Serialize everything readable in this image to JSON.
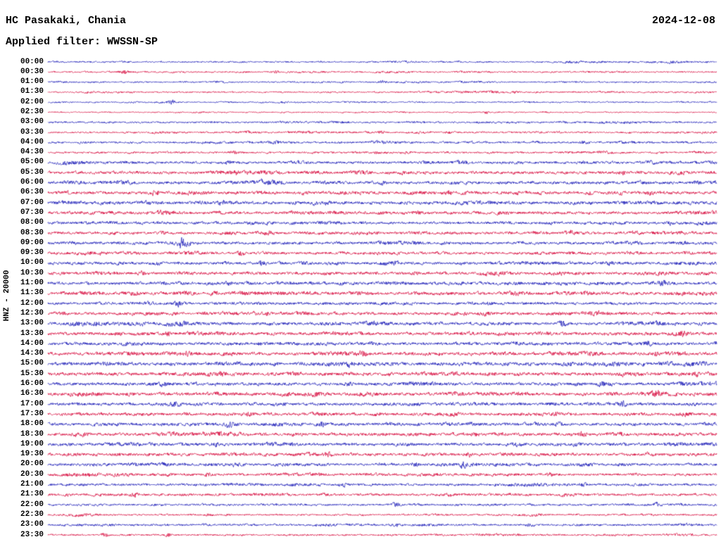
{
  "header": {
    "station_title": "HC Pasakaki, Chania",
    "date": "2024-12-08",
    "filter_label": "Applied filter: WWSSN-SP"
  },
  "side": {
    "channel_label": "HNZ - 20000"
  },
  "chart_data": {
    "type": "line",
    "subtype": "helicorder-seismogram",
    "title": "HC Pasakaki, Chania",
    "date": "2024-12-08",
    "filter": "WWSSN-SP",
    "channel": "HNZ",
    "scale": 20000,
    "row_duration_minutes": 30,
    "legend_position": "none",
    "grid": false,
    "colors": {
      "blue": "#1414b4",
      "red": "#d50038"
    },
    "noise_seed": 20241208,
    "rows": [
      {
        "time": "00:00",
        "color": "blue",
        "amp": 1.1,
        "events": []
      },
      {
        "time": "00:30",
        "color": "red",
        "amp": 1.1,
        "events": [
          {
            "x": 0.115,
            "a": 2.5
          },
          {
            "x": 0.34,
            "a": 2.0
          }
        ]
      },
      {
        "time": "01:00",
        "color": "blue",
        "amp": 1.1,
        "events": [
          {
            "x": 0.5,
            "a": 2.5
          }
        ]
      },
      {
        "time": "01:30",
        "color": "red",
        "amp": 1.1,
        "events": [
          {
            "x": 0.7,
            "a": 2.0
          }
        ]
      },
      {
        "time": "02:00",
        "color": "blue",
        "amp": 0.9,
        "events": [
          {
            "x": 0.185,
            "a": 4.5,
            "w": 0.003
          }
        ]
      },
      {
        "time": "02:30",
        "color": "red",
        "amp": 0.9,
        "events": [
          {
            "x": 0.655,
            "a": 2.5,
            "w": 0.003
          }
        ]
      },
      {
        "time": "03:00",
        "color": "blue",
        "amp": 1.3,
        "events": []
      },
      {
        "time": "03:30",
        "color": "red",
        "amp": 1.2,
        "events": [
          {
            "x": 0.5,
            "a": 2.0
          },
          {
            "x": 0.6,
            "a": 2.0
          }
        ]
      },
      {
        "time": "04:00",
        "color": "blue",
        "amp": 1.4,
        "events": [
          {
            "x": 0.34,
            "a": 2.0
          },
          {
            "x": 0.8,
            "a": 2.5
          }
        ]
      },
      {
        "time": "04:30",
        "color": "red",
        "amp": 1.3,
        "events": [
          {
            "x": 0.28,
            "a": 2.0
          },
          {
            "x": 0.49,
            "a": 2.0
          }
        ]
      },
      {
        "time": "05:00",
        "color": "blue",
        "amp": 1.8,
        "events": [
          {
            "x": 0.27,
            "a": 2.5
          },
          {
            "x": 0.8,
            "a": 2.5
          }
        ]
      },
      {
        "time": "05:30",
        "color": "red",
        "amp": 2.0,
        "events": [
          {
            "x": 0.28,
            "a": 3.0
          },
          {
            "x": 0.86,
            "a": 2.0
          }
        ]
      },
      {
        "time": "06:00",
        "color": "blue",
        "amp": 2.0,
        "events": [
          {
            "x": 0.5,
            "a": 2.5
          },
          {
            "x": 0.97,
            "a": 2.0
          }
        ]
      },
      {
        "time": "06:30",
        "color": "red",
        "amp": 2.2,
        "events": [
          {
            "x": 0.16,
            "a": 2.5
          },
          {
            "x": 0.6,
            "a": 2.5
          },
          {
            "x": 0.9,
            "a": 2.5
          }
        ]
      },
      {
        "time": "07:00",
        "color": "blue",
        "amp": 2.2,
        "events": [
          {
            "x": 0.26,
            "a": 3.0
          },
          {
            "x": 0.4,
            "a": 2.5
          }
        ]
      },
      {
        "time": "07:30",
        "color": "red",
        "amp": 2.1,
        "events": [
          {
            "x": 0.17,
            "a": 2.5
          },
          {
            "x": 0.55,
            "a": 2.0
          }
        ]
      },
      {
        "time": "08:00",
        "color": "blue",
        "amp": 1.9,
        "events": [
          {
            "x": 0.3,
            "a": 2.0
          },
          {
            "x": 0.93,
            "a": 2.5
          }
        ]
      },
      {
        "time": "08:30",
        "color": "red",
        "amp": 1.9,
        "events": [
          {
            "x": 0.33,
            "a": 4.0
          },
          {
            "x": 0.78,
            "a": 2.5
          }
        ]
      },
      {
        "time": "09:00",
        "color": "blue",
        "amp": 1.9,
        "events": [
          {
            "x": 0.2,
            "a": 9.0,
            "w": 0.006
          },
          {
            "x": 0.95,
            "a": 2.5
          }
        ]
      },
      {
        "time": "09:30",
        "color": "red",
        "amp": 1.9,
        "events": [
          {
            "x": 0.29,
            "a": 3.0
          }
        ]
      },
      {
        "time": "10:00",
        "color": "blue",
        "amp": 2.0,
        "events": [
          {
            "x": 0.32,
            "a": 3.5
          },
          {
            "x": 0.52,
            "a": 2.5
          },
          {
            "x": 0.84,
            "a": 2.5
          }
        ]
      },
      {
        "time": "10:30",
        "color": "red",
        "amp": 2.1,
        "events": [
          {
            "x": 0.14,
            "a": 2.5
          },
          {
            "x": 0.55,
            "a": 2.5
          }
        ]
      },
      {
        "time": "11:00",
        "color": "blue",
        "amp": 2.1,
        "events": [
          {
            "x": 0.27,
            "a": 2.5
          },
          {
            "x": 0.92,
            "a": 3.0
          }
        ]
      },
      {
        "time": "11:30",
        "color": "red",
        "amp": 2.2,
        "events": [
          {
            "x": 0.13,
            "a": 2.5
          },
          {
            "x": 0.25,
            "a": 2.5
          },
          {
            "x": 0.7,
            "a": 2.0
          }
        ]
      },
      {
        "time": "12:00",
        "color": "blue",
        "amp": 1.9,
        "events": [
          {
            "x": 0.195,
            "a": 5.0,
            "w": 0.005
          },
          {
            "x": 0.66,
            "a": 2.5
          }
        ]
      },
      {
        "time": "12:30",
        "color": "red",
        "amp": 2.1,
        "events": [
          {
            "x": 0.33,
            "a": 2.5
          },
          {
            "x": 0.82,
            "a": 2.5
          }
        ]
      },
      {
        "time": "13:00",
        "color": "blue",
        "amp": 2.2,
        "events": [
          {
            "x": 0.77,
            "a": 3.0
          }
        ]
      },
      {
        "time": "13:30",
        "color": "red",
        "amp": 2.2,
        "events": [
          {
            "x": 0.18,
            "a": 2.5
          },
          {
            "x": 0.95,
            "a": 3.0
          }
        ]
      },
      {
        "time": "14:00",
        "color": "blue",
        "amp": 2.1,
        "events": [
          {
            "x": 0.32,
            "a": 2.5
          },
          {
            "x": 0.9,
            "a": 3.0
          }
        ]
      },
      {
        "time": "14:30",
        "color": "red",
        "amp": 2.2,
        "events": [
          {
            "x": 0.21,
            "a": 2.5
          },
          {
            "x": 0.47,
            "a": 2.5
          },
          {
            "x": 0.91,
            "a": 2.5
          }
        ]
      },
      {
        "time": "15:00",
        "color": "blue",
        "amp": 2.4,
        "events": [
          {
            "x": 0.45,
            "a": 2.5
          },
          {
            "x": 0.98,
            "a": 3.0
          }
        ]
      },
      {
        "time": "15:30",
        "color": "red",
        "amp": 2.4,
        "events": [
          {
            "x": 0.26,
            "a": 2.5
          },
          {
            "x": 0.97,
            "a": 3.0
          }
        ]
      },
      {
        "time": "16:00",
        "color": "blue",
        "amp": 2.2,
        "events": [
          {
            "x": 0.17,
            "a": 3.5
          },
          {
            "x": 0.45,
            "a": 2.5
          },
          {
            "x": 0.83,
            "a": 2.5
          }
        ]
      },
      {
        "time": "16:30",
        "color": "red",
        "amp": 2.2,
        "events": [
          {
            "x": 0.91,
            "a": 3.5
          }
        ]
      },
      {
        "time": "17:00",
        "color": "blue",
        "amp": 2.1,
        "events": [
          {
            "x": 0.19,
            "a": 2.5
          },
          {
            "x": 0.86,
            "a": 4.0
          }
        ]
      },
      {
        "time": "17:30",
        "color": "red",
        "amp": 2.1,
        "events": [
          {
            "x": 0.3,
            "a": 2.5
          },
          {
            "x": 0.76,
            "a": 2.5
          }
        ]
      },
      {
        "time": "18:00",
        "color": "blue",
        "amp": 2.1,
        "events": [
          {
            "x": 0.27,
            "a": 3.0
          },
          {
            "x": 0.41,
            "a": 2.5
          },
          {
            "x": 0.76,
            "a": 2.5
          }
        ]
      },
      {
        "time": "18:30",
        "color": "red",
        "amp": 2.2,
        "events": [
          {
            "x": 0.64,
            "a": 2.5
          },
          {
            "x": 0.8,
            "a": 3.5
          }
        ]
      },
      {
        "time": "19:00",
        "color": "blue",
        "amp": 2.1,
        "events": [
          {
            "x": 0.25,
            "a": 2.5
          },
          {
            "x": 0.7,
            "a": 2.5
          },
          {
            "x": 0.94,
            "a": 3.0
          }
        ]
      },
      {
        "time": "19:30",
        "color": "red",
        "amp": 2.1,
        "events": [
          {
            "x": 0.42,
            "a": 2.5
          },
          {
            "x": 0.63,
            "a": 2.5
          },
          {
            "x": 0.9,
            "a": 3.0
          }
        ]
      },
      {
        "time": "20:00",
        "color": "blue",
        "amp": 1.9,
        "events": [
          {
            "x": 0.28,
            "a": 2.5
          },
          {
            "x": 0.55,
            "a": 2.5
          },
          {
            "x": 0.62,
            "a": 4.0
          }
        ]
      },
      {
        "time": "20:30",
        "color": "red",
        "amp": 1.7,
        "events": [
          {
            "x": 0.24,
            "a": 2.5
          },
          {
            "x": 0.75,
            "a": 2.0
          }
        ]
      },
      {
        "time": "21:00",
        "color": "blue",
        "amp": 1.7,
        "events": [
          {
            "x": 0.44,
            "a": 2.5
          },
          {
            "x": 0.8,
            "a": 2.5
          }
        ]
      },
      {
        "time": "21:30",
        "color": "red",
        "amp": 1.7,
        "events": [
          {
            "x": 0.13,
            "a": 3.0
          },
          {
            "x": 0.6,
            "a": 2.0
          }
        ]
      },
      {
        "time": "22:00",
        "color": "blue",
        "amp": 1.4,
        "events": [
          {
            "x": 0.52,
            "a": 2.0
          },
          {
            "x": 0.91,
            "a": 3.0
          }
        ]
      },
      {
        "time": "22:30",
        "color": "red",
        "amp": 1.2,
        "events": [
          {
            "x": 0.24,
            "a": 2.0
          }
        ]
      },
      {
        "time": "23:00",
        "color": "blue",
        "amp": 1.4,
        "events": [
          {
            "x": 0.52,
            "a": 2.5
          },
          {
            "x": 0.72,
            "a": 2.5
          }
        ]
      },
      {
        "time": "23:30",
        "color": "red",
        "amp": 1.2,
        "events": [
          {
            "x": 0.085,
            "a": 3.0
          },
          {
            "x": 0.18,
            "a": 2.5
          }
        ]
      }
    ]
  }
}
